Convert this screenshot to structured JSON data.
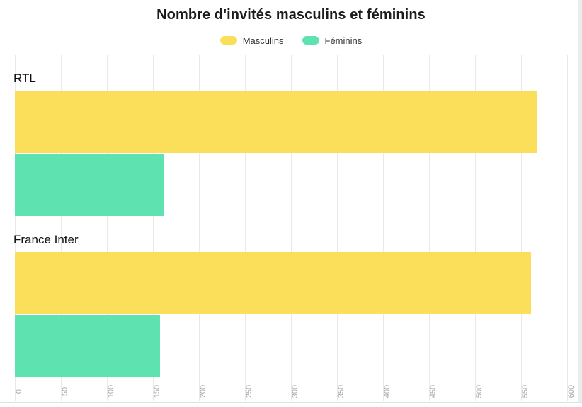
{
  "header": {
    "title": "Nombre d'invités masculins et féminins"
  },
  "legend": {
    "items": [
      {
        "label": "Masculins",
        "color": "#FBDF5B"
      },
      {
        "label": "Féminins",
        "color": "#5EE2B0"
      }
    ]
  },
  "chart_data": {
    "type": "bar",
    "orientation": "horizontal",
    "title": "Nombre d'invités masculins et féminins",
    "categories": [
      "RTL",
      "France Inter"
    ],
    "series": [
      {
        "name": "Masculins",
        "color": "#FBDF5B",
        "values": [
          567,
          561
        ]
      },
      {
        "name": "Féminins",
        "color": "#5EE2B0",
        "values": [
          162,
          158
        ]
      }
    ],
    "xlim": [
      0,
      600
    ],
    "tick_step": 50,
    "tick_labels": [
      "0",
      "50",
      "100",
      "150",
      "200",
      "250",
      "300",
      "350",
      "400",
      "450",
      "500",
      "550",
      "600"
    ],
    "grid": true,
    "legend_position": "top",
    "colors": {
      "grid_color": "#e9e9e9",
      "axis_label_color": "#a6a6a6",
      "category_label_color": "#111111",
      "title_color": "#1c1c1c"
    }
  }
}
